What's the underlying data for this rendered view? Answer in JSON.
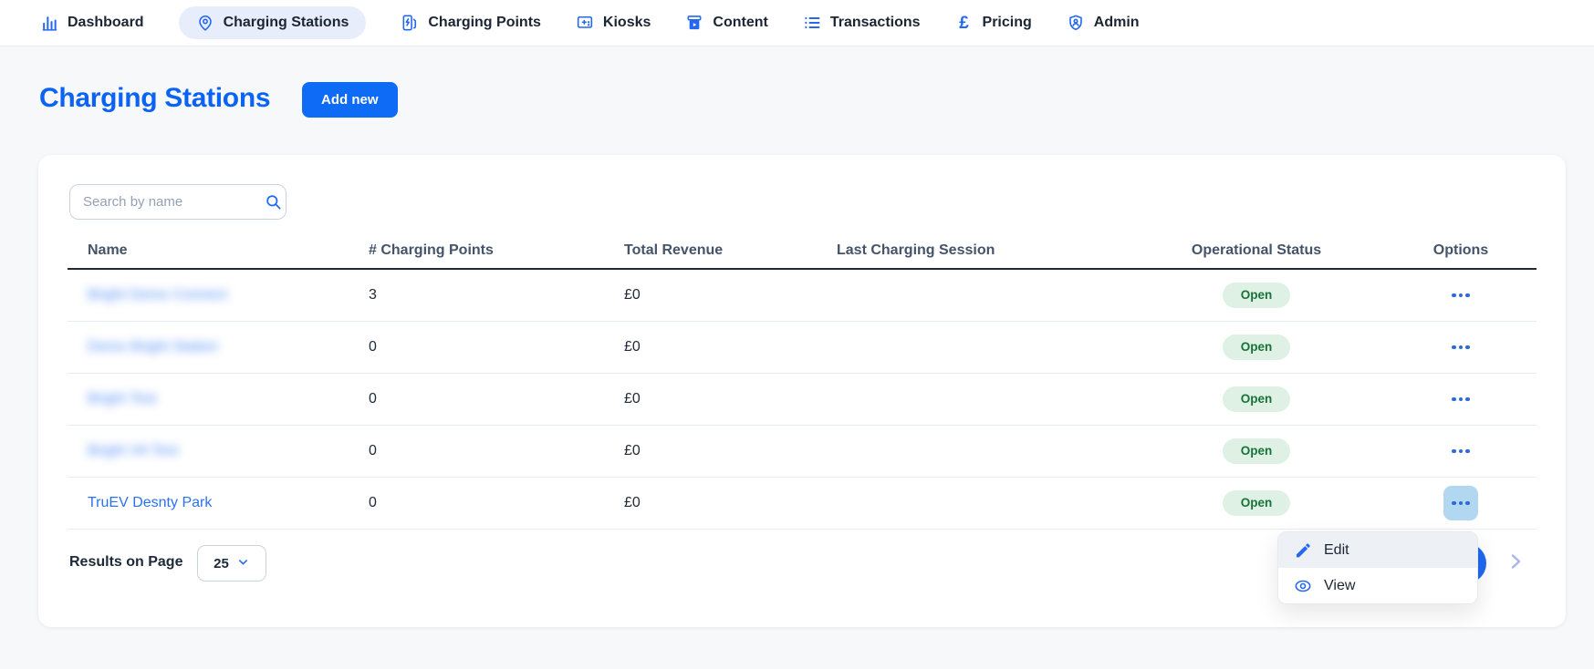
{
  "nav": {
    "items": [
      {
        "id": "dashboard",
        "label": "Dashboard",
        "icon": "bar-chart-icon",
        "active": false
      },
      {
        "id": "charging-stations",
        "label": "Charging Stations",
        "icon": "map-pin-icon",
        "active": true
      },
      {
        "id": "charging-points",
        "label": "Charging Points",
        "icon": "ev-charger-icon",
        "active": false
      },
      {
        "id": "kiosks",
        "label": "Kiosks",
        "icon": "kiosk-icon",
        "active": false
      },
      {
        "id": "content",
        "label": "Content",
        "icon": "content-box-icon",
        "active": false
      },
      {
        "id": "transactions",
        "label": "Transactions",
        "icon": "list-icon",
        "active": false
      },
      {
        "id": "pricing",
        "label": "Pricing",
        "icon": "pound-icon",
        "active": false
      },
      {
        "id": "admin",
        "label": "Admin",
        "icon": "admin-shield-icon",
        "active": false
      }
    ]
  },
  "page": {
    "title": "Charging Stations",
    "add_button_label": "Add new"
  },
  "search": {
    "placeholder": "Search by name"
  },
  "table": {
    "columns": [
      "Name",
      "# Charging Points",
      "Total Revenue",
      "Last Charging Session",
      "Operational Status",
      "Options"
    ],
    "rows": [
      {
        "name": "Bright Demo Connect",
        "name_blurred": true,
        "charging_points": "3",
        "total_revenue": "£0",
        "last_session": "",
        "status": "Open",
        "options_active": false
      },
      {
        "name": "Demo Bright Station",
        "name_blurred": true,
        "charging_points": "0",
        "total_revenue": "£0",
        "last_session": "",
        "status": "Open",
        "options_active": false
      },
      {
        "name": "Bright Test",
        "name_blurred": true,
        "charging_points": "0",
        "total_revenue": "£0",
        "last_session": "",
        "status": "Open",
        "options_active": false
      },
      {
        "name": "Bright VA Test",
        "name_blurred": true,
        "charging_points": "0",
        "total_revenue": "£0",
        "last_session": "",
        "status": "Open",
        "options_active": false
      },
      {
        "name": "TruEV Desnty Park",
        "name_blurred": false,
        "charging_points": "0",
        "total_revenue": "£0",
        "last_session": "",
        "status": "Open",
        "options_active": true
      }
    ]
  },
  "context_menu": {
    "items": [
      {
        "label": "Edit",
        "icon": "pencil-icon",
        "highlighted": true
      },
      {
        "label": "View",
        "icon": "eye-icon",
        "highlighted": false
      }
    ]
  },
  "footer": {
    "results_label": "Results on Page",
    "page_size": "25"
  },
  "colors": {
    "accent_blue": "#0d6bf5",
    "title_blue": "#0a63f2",
    "active_nav_bg": "#e8edfb",
    "badge_bg": "#def1e4",
    "badge_text": "#187339",
    "options_active_bg": "#b2d7f1",
    "link_blue": "#2b72f0"
  }
}
